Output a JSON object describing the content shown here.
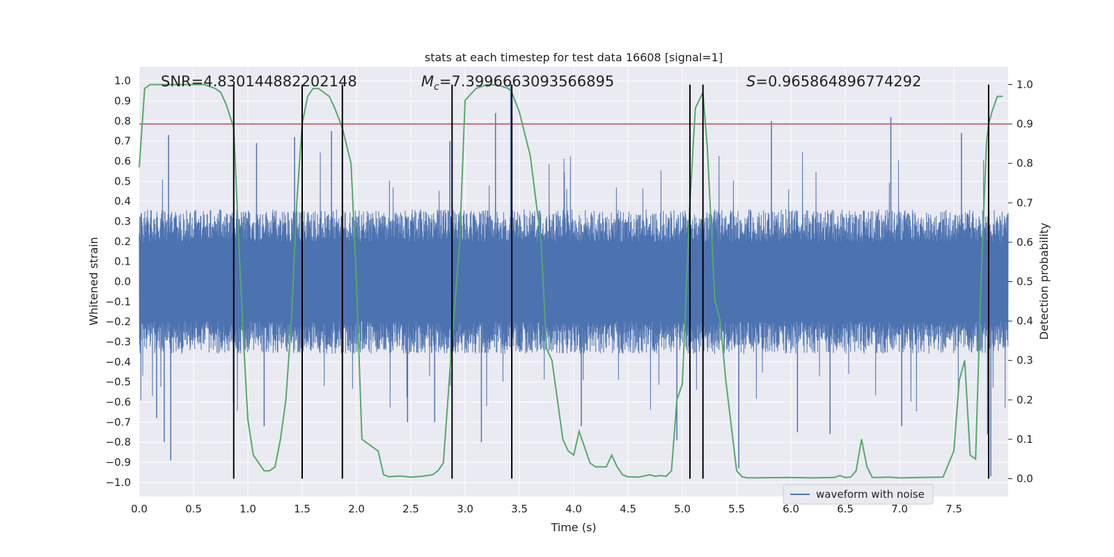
{
  "chart_data": {
    "type": "line",
    "title": "stats at each timestep for test data 16608 [signal=1]",
    "xlabel": "Time (s)",
    "ylabel": "Whitened strain",
    "ylabel_right": "Detection probability",
    "xlim": [
      0.0,
      8.0
    ],
    "ylim": [
      -1.07,
      1.07
    ],
    "ylim_right": [
      -0.045,
      1.045
    ],
    "x_ticks": [
      0.0,
      0.5,
      1.0,
      1.5,
      2.0,
      2.5,
      3.0,
      3.5,
      4.0,
      4.5,
      5.0,
      5.5,
      6.0,
      6.5,
      7.0,
      7.5
    ],
    "x_tick_labels": [
      "0.0",
      "0.5",
      "1.0",
      "1.5",
      "2.0",
      "2.5",
      "3.0",
      "3.5",
      "4.0",
      "4.5",
      "5.0",
      "5.5",
      "6.0",
      "6.5",
      "7.0",
      "7.5"
    ],
    "y_ticks": [
      -1.0,
      -0.9,
      -0.8,
      -0.7,
      -0.6,
      -0.5,
      -0.4,
      -0.3,
      -0.2,
      -0.1,
      0.0,
      0.1,
      0.2,
      0.3,
      0.4,
      0.5,
      0.6,
      0.7,
      0.8,
      0.9,
      1.0
    ],
    "y_tick_labels": [
      "−1.0",
      "−0.9",
      "−0.8",
      "−0.7",
      "−0.6",
      "−0.5",
      "−0.4",
      "−0.3",
      "−0.2",
      "−0.1",
      "0.0",
      "0.1",
      "0.2",
      "0.3",
      "0.4",
      "0.5",
      "0.6",
      "0.7",
      "0.8",
      "0.9",
      "1.0"
    ],
    "y_ticks_right": [
      0.0,
      0.1,
      0.2,
      0.3,
      0.4,
      0.5,
      0.6,
      0.7,
      0.8,
      0.9,
      1.0
    ],
    "y_tick_labels_right": [
      "0.0",
      "0.1",
      "0.2",
      "0.3",
      "0.4",
      "0.5",
      "0.6",
      "0.7",
      "0.8",
      "0.9",
      "1.0"
    ],
    "grid": true,
    "legend": {
      "position": "lower-right",
      "entries": [
        {
          "name": "waveform with noise",
          "color": "#4c72b0"
        }
      ]
    },
    "annotations": {
      "snr": "SNR=4.830144882202148",
      "mc_symbol": "M",
      "mc_subscript": "c",
      "mc_value": "=7.3996663093566895",
      "s_symbol": "S",
      "s_value": "=0.965864896774292"
    },
    "threshold_line": {
      "axis": "right",
      "value": 0.9,
      "color": "#c44e52"
    },
    "vertical_lines": {
      "x": [
        0.87,
        1.5,
        1.87,
        2.88,
        3.43,
        5.07,
        5.19,
        7.82
      ],
      "ymin": 0.0,
      "ymax": 1.0,
      "axis": "right",
      "color": "#000000"
    },
    "waveform": {
      "name": "waveform with noise",
      "color": "#4c72b0",
      "duration": 8.0,
      "core_amplitude": 0.36,
      "spikes": [
        {
          "x": 0.27,
          "y": 0.73
        },
        {
          "x": 0.23,
          "y": -0.8
        },
        {
          "x": 0.29,
          "y": -0.89
        },
        {
          "x": 0.16,
          "y": -0.68
        },
        {
          "x": 1.08,
          "y": 0.69
        },
        {
          "x": 1.15,
          "y": -0.72
        },
        {
          "x": 1.43,
          "y": 0.72
        },
        {
          "x": 1.77,
          "y": 0.75
        },
        {
          "x": 2.47,
          "y": -0.7
        },
        {
          "x": 2.72,
          "y": -0.7
        },
        {
          "x": 2.86,
          "y": 0.7
        },
        {
          "x": 3.15,
          "y": -0.8
        },
        {
          "x": 3.28,
          "y": 0.84
        },
        {
          "x": 3.42,
          "y": 1.0
        },
        {
          "x": 4.07,
          "y": -0.72
        },
        {
          "x": 4.95,
          "y": -0.79
        },
        {
          "x": 5.52,
          "y": -0.93
        },
        {
          "x": 5.82,
          "y": 0.8
        },
        {
          "x": 6.06,
          "y": -0.75
        },
        {
          "x": 6.36,
          "y": -0.76
        },
        {
          "x": 6.92,
          "y": 0.82
        },
        {
          "x": 7.02,
          "y": -0.72
        },
        {
          "x": 7.57,
          "y": 0.74
        },
        {
          "x": 7.84,
          "y": -0.97
        },
        {
          "x": 7.81,
          "y": -0.76
        }
      ]
    },
    "series": [
      {
        "name": "detection probability",
        "axis": "right",
        "color": "#55a868",
        "x": [
          0.0,
          0.05,
          0.1,
          0.2,
          0.3,
          0.4,
          0.5,
          0.6,
          0.7,
          0.75,
          0.8,
          0.87,
          0.9,
          0.95,
          1.0,
          1.05,
          1.1,
          1.15,
          1.2,
          1.25,
          1.3,
          1.35,
          1.4,
          1.45,
          1.5,
          1.55,
          1.6,
          1.65,
          1.7,
          1.75,
          1.8,
          1.87,
          1.95,
          2.0,
          2.05,
          2.1,
          2.15,
          2.2,
          2.25,
          2.3,
          2.4,
          2.5,
          2.6,
          2.7,
          2.75,
          2.8,
          2.88,
          2.95,
          3.0,
          3.1,
          3.2,
          3.3,
          3.4,
          3.43,
          3.5,
          3.6,
          3.7,
          3.75,
          3.8,
          3.85,
          3.9,
          3.95,
          4.0,
          4.05,
          4.1,
          4.15,
          4.2,
          4.3,
          4.35,
          4.4,
          4.45,
          4.5,
          4.6,
          4.7,
          4.75,
          4.8,
          4.85,
          4.9,
          4.95,
          5.0,
          5.07,
          5.12,
          5.19,
          5.23,
          5.3,
          5.35,
          5.4,
          5.5,
          5.55,
          5.6,
          6.0,
          6.2,
          6.4,
          6.45,
          6.5,
          6.55,
          6.6,
          6.65,
          6.7,
          6.75,
          6.8,
          6.9,
          7.0,
          7.2,
          7.4,
          7.5,
          7.55,
          7.6,
          7.65,
          7.7,
          7.75,
          7.8,
          7.82,
          7.85,
          7.9,
          7.95
        ],
        "y": [
          0.79,
          0.99,
          1.0,
          1.0,
          1.0,
          1.0,
          1.0,
          1.0,
          0.99,
          0.98,
          0.95,
          0.89,
          0.7,
          0.4,
          0.15,
          0.06,
          0.04,
          0.02,
          0.02,
          0.03,
          0.1,
          0.2,
          0.4,
          0.7,
          0.9,
          0.97,
          0.99,
          0.99,
          0.98,
          0.97,
          0.94,
          0.89,
          0.8,
          0.5,
          0.1,
          0.09,
          0.08,
          0.07,
          0.01,
          0.005,
          0.007,
          0.004,
          0.006,
          0.01,
          0.02,
          0.04,
          0.35,
          0.6,
          0.96,
          0.99,
          1.0,
          0.999,
          0.99,
          0.98,
          0.93,
          0.82,
          0.6,
          0.33,
          0.3,
          0.2,
          0.1,
          0.07,
          0.06,
          0.12,
          0.08,
          0.04,
          0.03,
          0.03,
          0.06,
          0.03,
          0.01,
          0.005,
          0.004,
          0.01,
          0.006,
          0.008,
          0.006,
          0.02,
          0.2,
          0.24,
          0.7,
          0.94,
          0.98,
          0.84,
          0.45,
          0.4,
          0.25,
          0.02,
          0.005,
          0.002,
          0.003,
          0.002,
          0.003,
          0.008,
          0.003,
          0.004,
          0.02,
          0.1,
          0.03,
          0.003,
          0.003,
          0.004,
          0.002,
          0.003,
          0.004,
          0.07,
          0.25,
          0.3,
          0.06,
          0.05,
          0.5,
          0.85,
          0.9,
          0.93,
          0.97,
          0.97
        ]
      }
    ]
  }
}
